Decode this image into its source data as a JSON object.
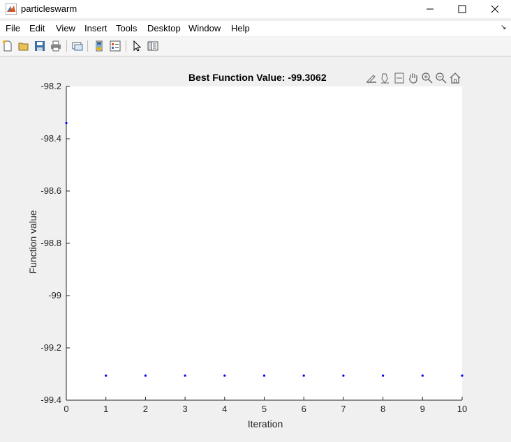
{
  "window": {
    "title": "particleswarm"
  },
  "menu": [
    "File",
    "Edit",
    "View",
    "Insert",
    "Tools",
    "Desktop",
    "Window",
    "Help"
  ],
  "plot": {
    "title": "Best Function Value: -99.3062",
    "xlabel": "Iteration",
    "ylabel": "Function value"
  },
  "chart_data": {
    "type": "scatter",
    "title": "Best Function Value: -99.3062",
    "xlabel": "Iteration",
    "ylabel": "Function value",
    "xlim": [
      0,
      10
    ],
    "ylim": [
      -99.4,
      -98.2
    ],
    "xticks": [
      "0",
      "1",
      "2",
      "3",
      "4",
      "5",
      "6",
      "7",
      "8",
      "9",
      "10"
    ],
    "yticks": [
      "-98.2",
      "-98.4",
      "-98.6",
      "-98.8",
      "-99",
      "-99.2",
      "-99.4"
    ],
    "grid": false,
    "color": "#0000ff",
    "x": [
      0,
      1,
      2,
      3,
      4,
      5,
      6,
      7,
      8,
      9,
      10
    ],
    "y": [
      -98.34,
      -99.3062,
      -99.3062,
      -99.3062,
      -99.3062,
      -99.3062,
      -99.3062,
      -99.3062,
      -99.3062,
      -99.3062,
      -99.3062
    ]
  }
}
